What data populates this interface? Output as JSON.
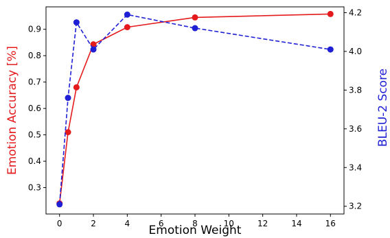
{
  "chart_data": {
    "type": "line",
    "xlabel": "Emotion Weight",
    "xlim": [
      -0.8,
      16.8
    ],
    "xticks": [
      0,
      2,
      4,
      6,
      8,
      10,
      12,
      14,
      16
    ],
    "left_axis": {
      "label": "Emotion Accuracy [%]",
      "color": "#e41a1c",
      "ylim": [
        0.2,
        0.985
      ],
      "ticks": [
        0.3,
        0.4,
        0.5,
        0.6,
        0.7,
        0.8,
        0.9
      ]
    },
    "right_axis": {
      "label": "BLEU-2 Score",
      "color": "#1f1fd6",
      "ylim": [
        3.16,
        4.23
      ],
      "ticks": [
        3.2,
        3.4,
        3.6,
        3.8,
        4.0,
        4.2
      ]
    },
    "series": [
      {
        "axis": "left",
        "color": "#e41a1c",
        "line_style": "solid",
        "marker": "circle",
        "x": [
          0,
          0.5,
          1,
          2,
          4,
          8,
          16
        ],
        "y": [
          0.24,
          0.51,
          0.68,
          0.843,
          0.908,
          0.945,
          0.958
        ]
      },
      {
        "axis": "right",
        "color": "#1f1fd6",
        "line_style": "dashed",
        "marker": "circle",
        "x": [
          0,
          0.5,
          1,
          2,
          4,
          8,
          16
        ],
        "y": [
          3.21,
          3.76,
          4.15,
          4.01,
          4.19,
          4.12,
          4.01
        ]
      }
    ]
  }
}
